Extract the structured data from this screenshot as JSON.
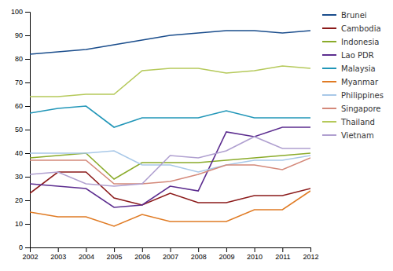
{
  "chart_data": {
    "type": "line",
    "x": [
      2002,
      2003,
      2004,
      2005,
      2006,
      2007,
      2008,
      2009,
      2010,
      2011,
      2012
    ],
    "series": [
      {
        "name": "Brunei",
        "color": "#1a4d8c",
        "values": [
          82,
          83,
          84,
          86,
          88,
          90,
          91,
          92,
          92,
          91,
          92
        ]
      },
      {
        "name": "Cambodia",
        "color": "#8b1a1a",
        "values": [
          23,
          32,
          32,
          21,
          18,
          23,
          19,
          19,
          22,
          22,
          25
        ]
      },
      {
        "name": "Indonesia",
        "color": "#8aab2a",
        "values": [
          38,
          39,
          40,
          29,
          36,
          36,
          36,
          37,
          38,
          39,
          40
        ]
      },
      {
        "name": "Lao PDR",
        "color": "#5c2d8f",
        "values": [
          27,
          26,
          25,
          17,
          18,
          26,
          24,
          49,
          47,
          51,
          51
        ]
      },
      {
        "name": "Malaysia",
        "color": "#2196b8",
        "values": [
          57,
          59,
          60,
          51,
          55,
          55,
          55,
          58,
          55,
          55,
          55
        ]
      },
      {
        "name": "Myanmar",
        "color": "#e07b24",
        "values": [
          15,
          13,
          13,
          9,
          14,
          11,
          11,
          11,
          16,
          16,
          24
        ]
      },
      {
        "name": "Philippines",
        "color": "#a8c8e8",
        "values": [
          40,
          40,
          40,
          41,
          35,
          35,
          32,
          35,
          37,
          37,
          39
        ]
      },
      {
        "name": "Singapore",
        "color": "#d4897a",
        "values": [
          37,
          37,
          37,
          27,
          27,
          28,
          31,
          35,
          35,
          33,
          38
        ]
      },
      {
        "name": "Thailand",
        "color": "#b5c95a",
        "values": [
          64,
          64,
          65,
          65,
          75,
          76,
          76,
          74,
          75,
          77,
          76
        ]
      },
      {
        "name": "Vietnam",
        "color": "#b0a0d0",
        "values": [
          31,
          32,
          27,
          26,
          27,
          39,
          38,
          41,
          47,
          42,
          42
        ]
      }
    ],
    "xlim": [
      2002,
      2012
    ],
    "xticks": [
      2002,
      2003,
      2004,
      2005,
      2006,
      2007,
      2008,
      2009,
      2010,
      2011,
      2012
    ],
    "ylim": [
      0,
      100
    ],
    "yticks": [
      0,
      10,
      20,
      30,
      40,
      50,
      60,
      70,
      80,
      90,
      100
    ],
    "grid": false,
    "legend": "right"
  }
}
